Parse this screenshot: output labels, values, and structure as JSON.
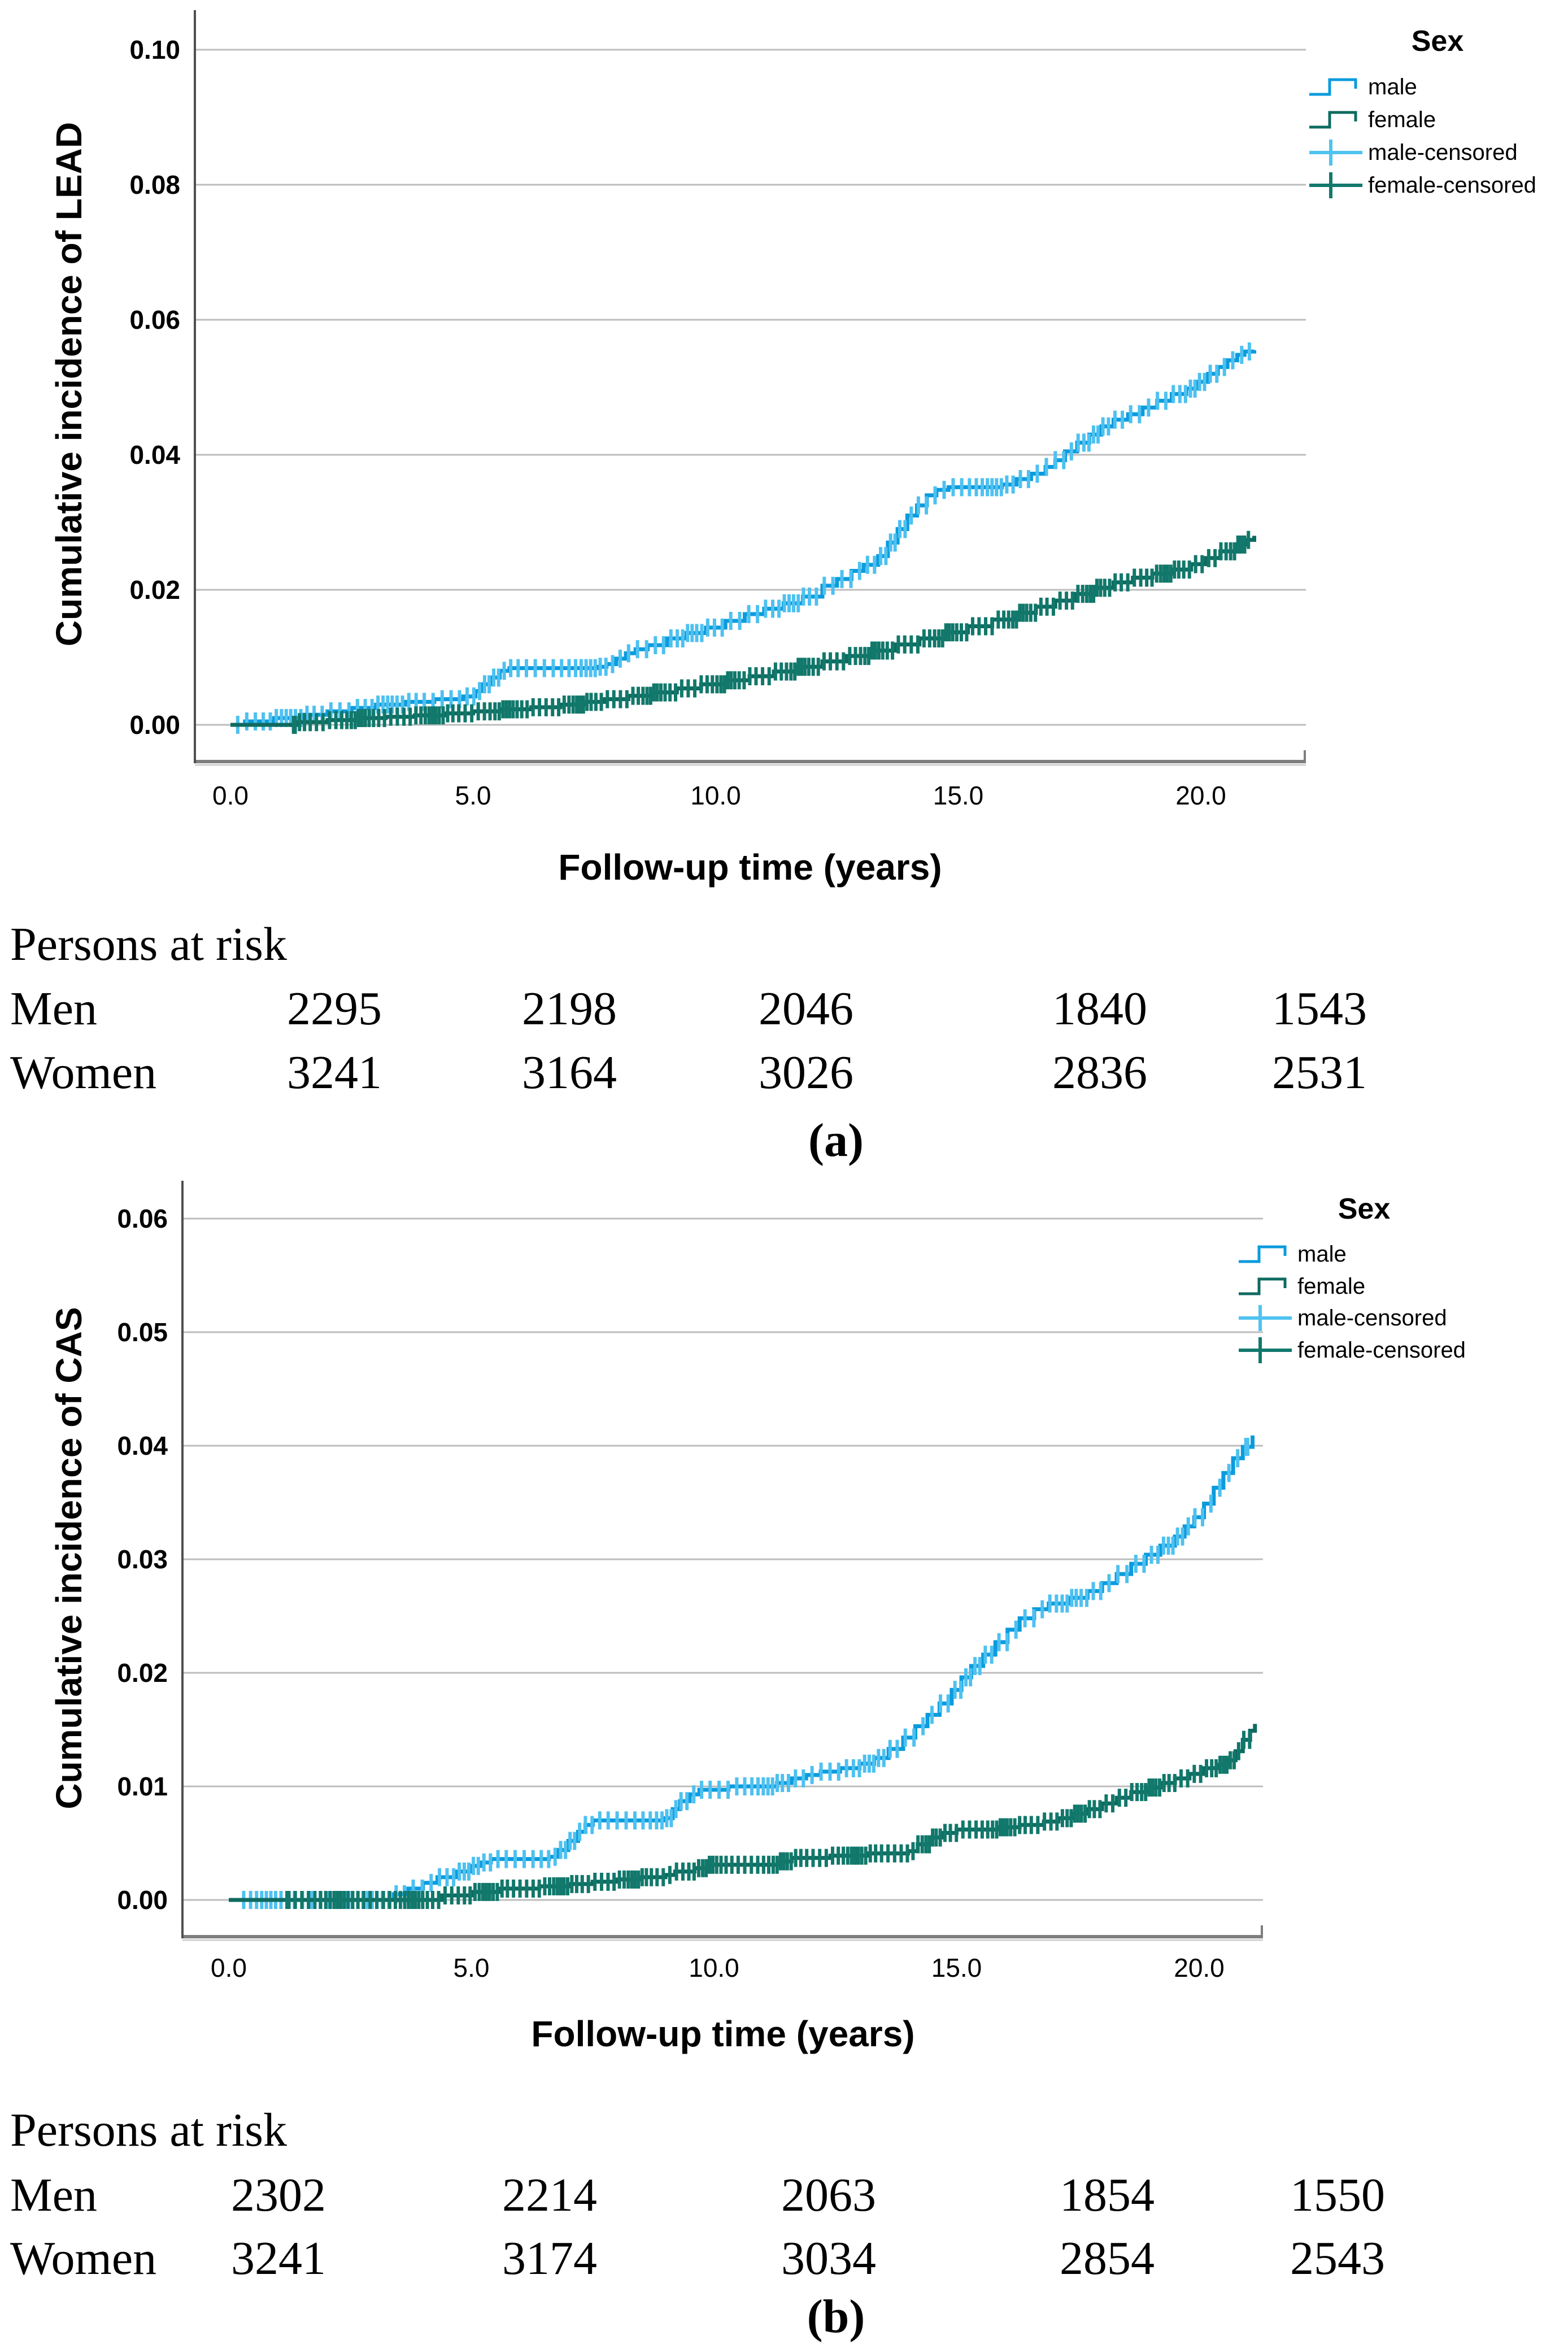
{
  "figure": {
    "panel_a": {
      "label": "(a)",
      "risk_table": {
        "title": "Persons at risk",
        "rows": [
          {
            "label": "Men",
            "values": [
              "2295",
              "2198",
              "2046",
              "1840",
              "1543"
            ]
          },
          {
            "label": "Women",
            "values": [
              "3241",
              "3164",
              "3026",
              "2836",
              "2531"
            ]
          }
        ]
      }
    },
    "panel_b": {
      "label": "(b)",
      "risk_table": {
        "title": "Persons at risk",
        "rows": [
          {
            "label": "Men",
            "values": [
              "2302",
              "2214",
              "2063",
              "1854",
              "1550"
            ]
          },
          {
            "label": "Women",
            "values": [
              "3241",
              "3174",
              "3034",
              "2854",
              "2543"
            ]
          }
        ]
      }
    }
  },
  "chart_data": [
    {
      "type": "line",
      "subtype": "cumulative-incidence-step",
      "panel": "a",
      "ylabel": "Cumulative incidence of LEAD",
      "xlabel": "Follow-up time (years)",
      "xlim": [
        0,
        22.2
      ],
      "ylim": [
        0,
        0.1057
      ],
      "grid": "horizontal",
      "xtick_values": [
        0,
        5,
        10,
        15,
        20
      ],
      "xtick_labels": [
        "0.0",
        "5.0",
        "10.0",
        "15.0",
        "20.0"
      ],
      "ytick_values": [
        0,
        0.02,
        0.04,
        0.06,
        0.08,
        0.1
      ],
      "ytick_labels": [
        "0.00",
        "0.02",
        "0.04",
        "0.06",
        "0.08",
        "0.10"
      ],
      "style": {
        "grid_color": "#bdbdbd",
        "axis_color": "#4f4f4f",
        "frame_color": "#7e7e7e",
        "frame_shadow": "#cfcfcf"
      },
      "legend": {
        "title": "Sex",
        "position": "right-top",
        "entries": [
          {
            "label": "male",
            "type": "step-line",
            "color": "#0b9bdd"
          },
          {
            "label": "female",
            "type": "step-line",
            "color": "#0e6b60"
          },
          {
            "label": "male-censored",
            "type": "plus-line",
            "color": "#4fc3f0"
          },
          {
            "label": "female-censored",
            "type": "plus-line",
            "color": "#12786d"
          }
        ]
      },
      "series": [
        {
          "name": "male",
          "color": "#0b9bdd",
          "censor_color": "#4ec1f0",
          "censor_marks": {
            "start": 0.15,
            "end": 21.0,
            "count": 150
          },
          "points": [
            [
              0,
              0
            ],
            [
              0.3,
              0.0005
            ],
            [
              0.9,
              0.001
            ],
            [
              1.5,
              0.0015
            ],
            [
              2.0,
              0.002
            ],
            [
              2.5,
              0.0025
            ],
            [
              3.0,
              0.003
            ],
            [
              3.6,
              0.0034
            ],
            [
              4.2,
              0.0038
            ],
            [
              4.8,
              0.0042
            ],
            [
              5.05,
              0.005
            ],
            [
              5.2,
              0.006
            ],
            [
              5.35,
              0.007
            ],
            [
              5.55,
              0.008
            ],
            [
              5.75,
              0.0084
            ],
            [
              7.55,
              0.0086
            ],
            [
              7.75,
              0.009
            ],
            [
              7.95,
              0.0098
            ],
            [
              8.15,
              0.0106
            ],
            [
              8.35,
              0.0112
            ],
            [
              8.6,
              0.0118
            ],
            [
              9.0,
              0.0128
            ],
            [
              9.4,
              0.0136
            ],
            [
              9.8,
              0.0144
            ],
            [
              10.2,
              0.0154
            ],
            [
              10.6,
              0.0164
            ],
            [
              11.0,
              0.0172
            ],
            [
              11.4,
              0.018
            ],
            [
              11.8,
              0.019
            ],
            [
              12.2,
              0.0206
            ],
            [
              12.5,
              0.0216
            ],
            [
              12.8,
              0.0228
            ],
            [
              13.05,
              0.0237
            ],
            [
              13.35,
              0.025
            ],
            [
              13.55,
              0.027
            ],
            [
              13.75,
              0.029
            ],
            [
              13.95,
              0.031
            ],
            [
              14.15,
              0.0325
            ],
            [
              14.35,
              0.034
            ],
            [
              14.55,
              0.0348
            ],
            [
              14.8,
              0.0352
            ],
            [
              15.9,
              0.0356
            ],
            [
              16.2,
              0.0364
            ],
            [
              16.5,
              0.0372
            ],
            [
              16.8,
              0.0382
            ],
            [
              17.0,
              0.0392
            ],
            [
              17.2,
              0.0405
            ],
            [
              17.45,
              0.0418
            ],
            [
              17.7,
              0.043
            ],
            [
              17.95,
              0.0442
            ],
            [
              18.2,
              0.0452
            ],
            [
              18.5,
              0.046
            ],
            [
              18.8,
              0.047
            ],
            [
              19.1,
              0.048
            ],
            [
              19.4,
              0.049
            ],
            [
              19.7,
              0.0498
            ],
            [
              19.95,
              0.0508
            ],
            [
              20.15,
              0.052
            ],
            [
              20.35,
              0.053
            ],
            [
              20.55,
              0.054
            ],
            [
              20.75,
              0.0548
            ],
            [
              20.9,
              0.0553
            ],
            [
              21.1,
              0.0555
            ]
          ]
        },
        {
          "name": "female",
          "color": "#0e6b60",
          "censor_color": "#11786b",
          "censor_marks": {
            "start": 1.3,
            "end": 21.05,
            "count": 195
          },
          "points": [
            [
              0,
              0
            ],
            [
              1.4,
              0.0004
            ],
            [
              2.0,
              0.0007
            ],
            [
              2.6,
              0.001
            ],
            [
              3.2,
              0.0012
            ],
            [
              3.8,
              0.0014
            ],
            [
              4.4,
              0.0017
            ],
            [
              5.0,
              0.002
            ],
            [
              5.6,
              0.0023
            ],
            [
              6.2,
              0.0026
            ],
            [
              6.8,
              0.003
            ],
            [
              7.3,
              0.0034
            ],
            [
              7.7,
              0.0038
            ],
            [
              8.2,
              0.0043
            ],
            [
              8.7,
              0.0048
            ],
            [
              9.2,
              0.0054
            ],
            [
              9.7,
              0.006
            ],
            [
              10.2,
              0.0066
            ],
            [
              10.7,
              0.0072
            ],
            [
              11.2,
              0.0079
            ],
            [
              11.7,
              0.0086
            ],
            [
              12.2,
              0.0094
            ],
            [
              12.7,
              0.0102
            ],
            [
              13.2,
              0.011
            ],
            [
              13.7,
              0.0119
            ],
            [
              14.2,
              0.0128
            ],
            [
              14.7,
              0.0137
            ],
            [
              15.2,
              0.0146
            ],
            [
              15.7,
              0.0156
            ],
            [
              16.2,
              0.0166
            ],
            [
              16.6,
              0.0175
            ],
            [
              17.0,
              0.0184
            ],
            [
              17.4,
              0.0194
            ],
            [
              17.8,
              0.0203
            ],
            [
              18.2,
              0.0211
            ],
            [
              18.6,
              0.0218
            ],
            [
              19.0,
              0.0224
            ],
            [
              19.4,
              0.023
            ],
            [
              19.8,
              0.0238
            ],
            [
              20.1,
              0.0247
            ],
            [
              20.4,
              0.0257
            ],
            [
              20.7,
              0.0267
            ],
            [
              20.95,
              0.0274
            ],
            [
              21.1,
              0.028
            ]
          ]
        }
      ]
    },
    {
      "type": "line",
      "subtype": "cumulative-incidence-step",
      "panel": "b",
      "ylabel": "Cumulative incidence of CAS",
      "xlabel": "Follow-up time (years)",
      "xlim": [
        0,
        22.2
      ],
      "ylim": [
        0,
        0.0633
      ],
      "grid": "horizontal",
      "xtick_values": [
        0,
        5,
        10,
        15,
        20
      ],
      "xtick_labels": [
        "0.0",
        "5.0",
        "10.0",
        "15.0",
        "20.0"
      ],
      "ytick_values": [
        0,
        0.01,
        0.02,
        0.03,
        0.04,
        0.05,
        0.06
      ],
      "ytick_labels": [
        "0.00",
        "0.01",
        "0.02",
        "0.03",
        "0.04",
        "0.05",
        "0.06"
      ],
      "style": {
        "grid_color": "#bdbdbd",
        "axis_color": "#4f4f4f",
        "frame_color": "#7e7e7e",
        "frame_shadow": "#cfcfcf"
      },
      "legend": {
        "title": "Sex",
        "position": "right-top",
        "entries": [
          {
            "label": "male",
            "type": "step-line",
            "color": "#0b9bdd"
          },
          {
            "label": "female",
            "type": "step-line",
            "color": "#0e6b60"
          },
          {
            "label": "male-censored",
            "type": "plus-line",
            "color": "#4fc3f0"
          },
          {
            "label": "female-censored",
            "type": "plus-line",
            "color": "#12786d"
          }
        ]
      },
      "series": [
        {
          "name": "male",
          "color": "#0b9bdd",
          "censor_color": "#4ec1f0",
          "censor_marks": {
            "start": 0.2,
            "end": 21.0,
            "count": 150
          },
          "points": [
            [
              0,
              0
            ],
            [
              3.4,
              0.0005
            ],
            [
              3.7,
              0.001
            ],
            [
              4.0,
              0.0015
            ],
            [
              4.3,
              0.002
            ],
            [
              4.7,
              0.0025
            ],
            [
              5.0,
              0.003
            ],
            [
              5.2,
              0.0033
            ],
            [
              5.4,
              0.0036
            ],
            [
              6.6,
              0.0038
            ],
            [
              6.8,
              0.0044
            ],
            [
              7.0,
              0.0052
            ],
            [
              7.2,
              0.006
            ],
            [
              7.35,
              0.0066
            ],
            [
              7.5,
              0.007
            ],
            [
              9.0,
              0.0072
            ],
            [
              9.15,
              0.008
            ],
            [
              9.3,
              0.0087
            ],
            [
              9.5,
              0.0093
            ],
            [
              9.7,
              0.0097
            ],
            [
              10.3,
              0.01
            ],
            [
              11.3,
              0.0103
            ],
            [
              11.6,
              0.0107
            ],
            [
              11.9,
              0.011
            ],
            [
              12.2,
              0.0113
            ],
            [
              12.6,
              0.0116
            ],
            [
              13.0,
              0.012
            ],
            [
              13.3,
              0.0125
            ],
            [
              13.6,
              0.0133
            ],
            [
              13.9,
              0.0143
            ],
            [
              14.15,
              0.0153
            ],
            [
              14.4,
              0.0163
            ],
            [
              14.65,
              0.0173
            ],
            [
              14.9,
              0.0185
            ],
            [
              15.1,
              0.0196
            ],
            [
              15.3,
              0.0206
            ],
            [
              15.55,
              0.0216
            ],
            [
              15.8,
              0.0227
            ],
            [
              16.05,
              0.0238
            ],
            [
              16.3,
              0.0248
            ],
            [
              16.6,
              0.0256
            ],
            [
              16.9,
              0.0261
            ],
            [
              17.3,
              0.0266
            ],
            [
              17.7,
              0.0272
            ],
            [
              18.0,
              0.0279
            ],
            [
              18.3,
              0.0287
            ],
            [
              18.6,
              0.0296
            ],
            [
              18.9,
              0.0304
            ],
            [
              19.2,
              0.0312
            ],
            [
              19.5,
              0.032
            ],
            [
              19.7,
              0.0329
            ],
            [
              19.9,
              0.0337
            ],
            [
              20.1,
              0.0349
            ],
            [
              20.3,
              0.0363
            ],
            [
              20.5,
              0.0376
            ],
            [
              20.7,
              0.0389
            ],
            [
              20.9,
              0.0399
            ],
            [
              21.1,
              0.0409
            ]
          ]
        },
        {
          "name": "female",
          "color": "#0e6b60",
          "censor_color": "#11786b",
          "censor_marks": {
            "start": 1.2,
            "end": 21.1,
            "count": 195
          },
          "points": [
            [
              0,
              0
            ],
            [
              4.4,
              0.0004
            ],
            [
              5.0,
              0.0007
            ],
            [
              5.6,
              0.001
            ],
            [
              6.4,
              0.0012
            ],
            [
              7.0,
              0.0014
            ],
            [
              7.5,
              0.0016
            ],
            [
              8.0,
              0.0018
            ],
            [
              8.5,
              0.002
            ],
            [
              9.0,
              0.0022
            ],
            [
              9.2,
              0.0025
            ],
            [
              9.6,
              0.0028
            ],
            [
              9.9,
              0.0031
            ],
            [
              11.35,
              0.0034
            ],
            [
              11.6,
              0.0037
            ],
            [
              12.4,
              0.0039
            ],
            [
              13.2,
              0.0041
            ],
            [
              14.0,
              0.0043
            ],
            [
              14.2,
              0.0049
            ],
            [
              14.45,
              0.0055
            ],
            [
              14.7,
              0.0059
            ],
            [
              15.0,
              0.0062
            ],
            [
              15.9,
              0.0064
            ],
            [
              16.3,
              0.0066
            ],
            [
              16.8,
              0.0069
            ],
            [
              17.1,
              0.0072
            ],
            [
              17.4,
              0.0076
            ],
            [
              17.7,
              0.008
            ],
            [
              18.0,
              0.0085
            ],
            [
              18.3,
              0.009
            ],
            [
              18.6,
              0.0095
            ],
            [
              18.9,
              0.0099
            ],
            [
              19.2,
              0.0103
            ],
            [
              19.5,
              0.0107
            ],
            [
              19.8,
              0.0111
            ],
            [
              20.1,
              0.0116
            ],
            [
              20.4,
              0.0119
            ],
            [
              20.6,
              0.0123
            ],
            [
              20.75,
              0.0131
            ],
            [
              20.9,
              0.0141
            ],
            [
              21.05,
              0.0149
            ],
            [
              21.15,
              0.0155
            ]
          ]
        }
      ]
    }
  ]
}
